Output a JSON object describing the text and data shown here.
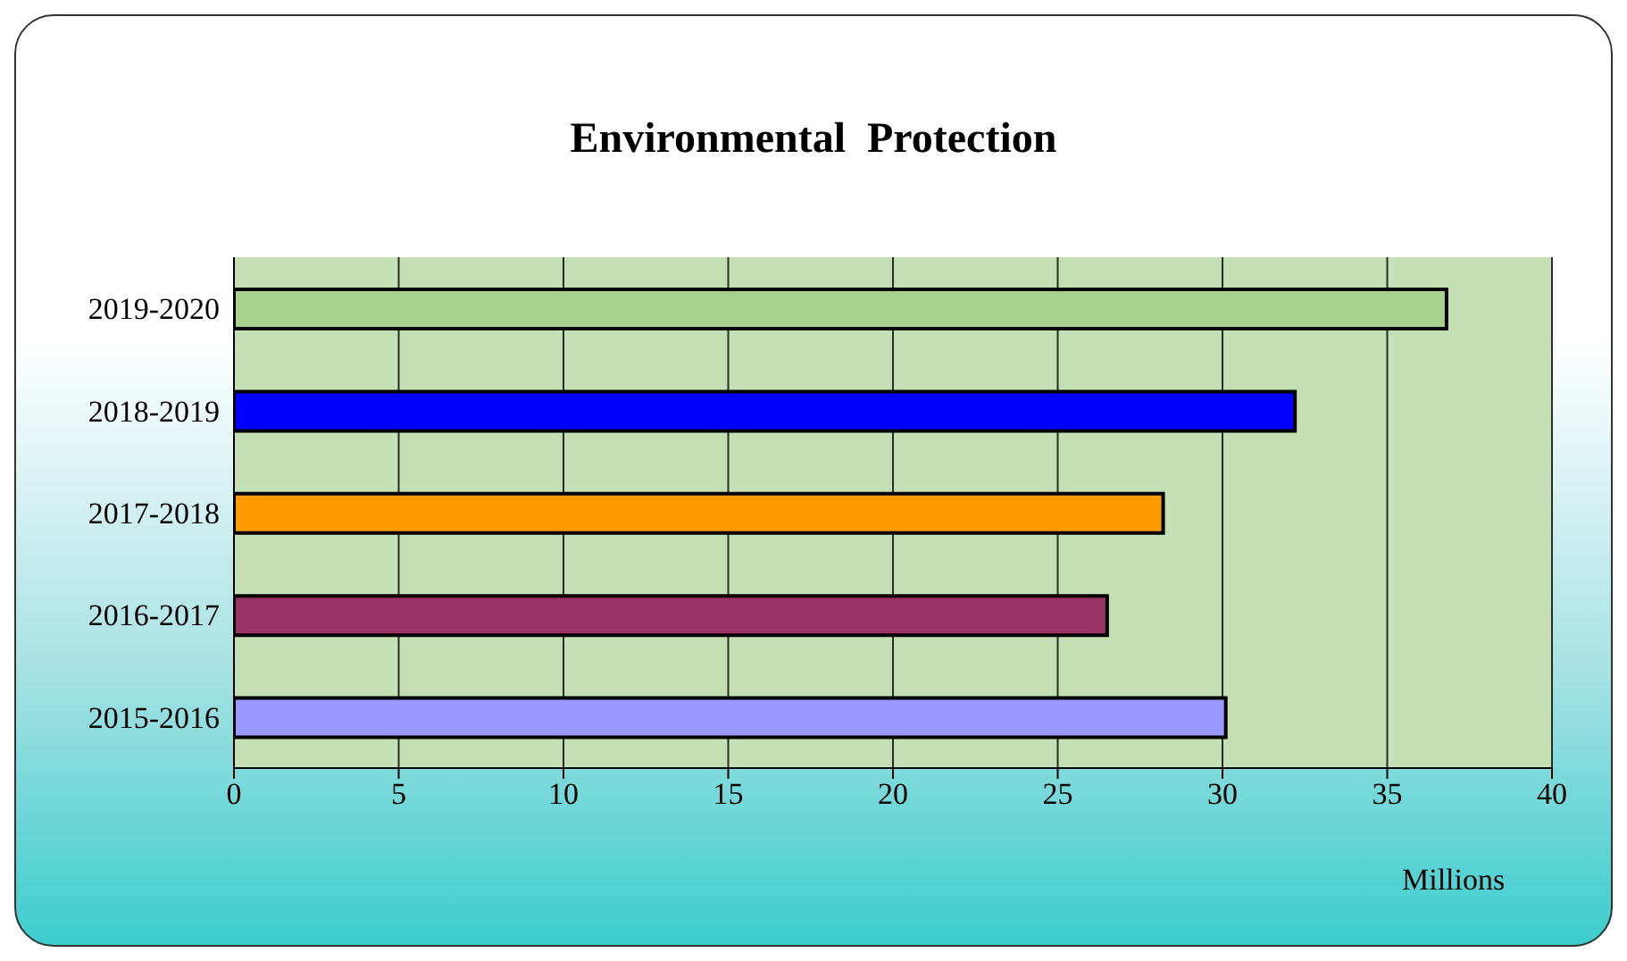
{
  "chart_data": {
    "type": "bar",
    "orientation": "horizontal",
    "title": "Environmental  Protection",
    "xlabel": "Millions",
    "categories": [
      "2019-2020",
      "2018-2019",
      "2017-2018",
      "2016-2017",
      "2015-2016"
    ],
    "values": [
      36.8,
      32.2,
      28.2,
      26.5,
      30.1
    ],
    "colors": [
      "#a9d18e",
      "#0000ff",
      "#ff9900",
      "#993366",
      "#9999ff"
    ],
    "xlim": [
      0,
      40
    ],
    "xticks": [
      0,
      5,
      10,
      15,
      20,
      25,
      30,
      35,
      40
    ],
    "grid": "x"
  }
}
